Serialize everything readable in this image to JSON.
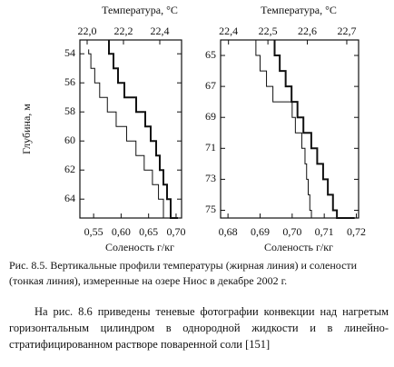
{
  "chart_data": [
    {
      "type": "profile",
      "x2label": "Температура, °C",
      "xlabel": "Соленость г/кг",
      "ylabel": "Глубина, м",
      "x2lim": [
        21.96,
        22.52
      ],
      "x2ticks": [
        {
          "value": 22.0,
          "label": "22,0"
        },
        {
          "value": 22.2,
          "label": "22,2"
        },
        {
          "value": 22.4,
          "label": "22,4"
        }
      ],
      "xlim": [
        0.525,
        0.71
      ],
      "xticks": [
        {
          "value": 0.55,
          "label": "0,55"
        },
        {
          "value": 0.6,
          "label": "0,60"
        },
        {
          "value": 0.65,
          "label": "0,65"
        },
        {
          "value": 0.7,
          "label": "0,70"
        }
      ],
      "ylim": [
        53.05,
        65.3
      ],
      "yticks": [
        54,
        56,
        58,
        60,
        62,
        64
      ],
      "y_inverted": true,
      "series": [
        {
          "color": "#111111",
          "axis": "x2",
          "width": 2,
          "depth": [
            53.05,
            54,
            55,
            56,
            57,
            58,
            59,
            60,
            61,
            62,
            63,
            64,
            65.3
          ],
          "values": [
            22.12,
            22.145,
            22.17,
            22.205,
            22.27,
            22.32,
            22.35,
            22.38,
            22.4,
            22.42,
            22.44,
            22.46,
            22.5
          ]
        },
        {
          "color": "#111111",
          "axis": "x",
          "width": 1,
          "depth": [
            53.7,
            54,
            55,
            56,
            57,
            58,
            59,
            60,
            61,
            62,
            63,
            64,
            65.3
          ],
          "values": [
            0.541,
            0.545,
            0.552,
            0.561,
            0.575,
            0.591,
            0.61,
            0.627,
            0.642,
            0.657,
            0.668,
            0.677,
            0.682
          ]
        }
      ]
    },
    {
      "type": "profile",
      "x2label": "Температура, °C",
      "xlabel": "Соленость г/кг",
      "x2lim": [
        22.38,
        22.73
      ],
      "x2ticks": [
        {
          "value": 22.4,
          "label": "22,4"
        },
        {
          "value": 22.5,
          "label": "22,5"
        },
        {
          "value": 22.6,
          "label": "22,6"
        },
        {
          "value": 22.7,
          "label": "22,7"
        }
      ],
      "xlim": [
        0.6777,
        0.7207
      ],
      "xticks": [
        {
          "value": 0.68,
          "label": "0,68"
        },
        {
          "value": 0.69,
          "label": "0,69"
        },
        {
          "value": 0.7,
          "label": "0,70"
        },
        {
          "value": 0.71,
          "label": "0,71"
        },
        {
          "value": 0.72,
          "label": "0,72"
        }
      ],
      "ylim": [
        64.0,
        75.5
      ],
      "yticks": [
        65,
        67,
        69,
        71,
        73,
        75
      ],
      "y_inverted": true,
      "series": [
        {
          "color": "#111111",
          "axis": "x2",
          "width": 2,
          "depth": [
            64.0,
            65,
            66,
            67,
            68,
            69,
            70,
            71,
            72,
            73,
            74,
            75,
            75.5
          ],
          "values": [
            22.517,
            22.53,
            22.545,
            22.56,
            22.575,
            22.59,
            22.61,
            22.625,
            22.64,
            22.652,
            22.665,
            22.675,
            22.72
          ]
        },
        {
          "color": "#111111",
          "axis": "x",
          "width": 1,
          "depth": [
            64.0,
            65,
            66,
            67,
            68,
            69,
            70,
            71,
            72,
            73,
            74,
            75,
            75.5
          ],
          "values": [
            0.6887,
            0.69,
            0.692,
            0.694,
            0.7,
            0.701,
            0.703,
            0.704,
            0.7045,
            0.705,
            0.7055,
            0.706,
            0.707
          ]
        }
      ]
    }
  ],
  "caption": "Рис. 8.5. Вертикальные профили температуры (жирная линия) и солености (тонкая линия), измеренные на озере Ниос в декабре 2002 г.",
  "paragraph": "На рис. 8.6 приведены теневые фотографии конвекции над нагретым горизонтальным цилиндром в однородной жидкости и в линейно-стратифицированном растворе поваренной соли [151]"
}
